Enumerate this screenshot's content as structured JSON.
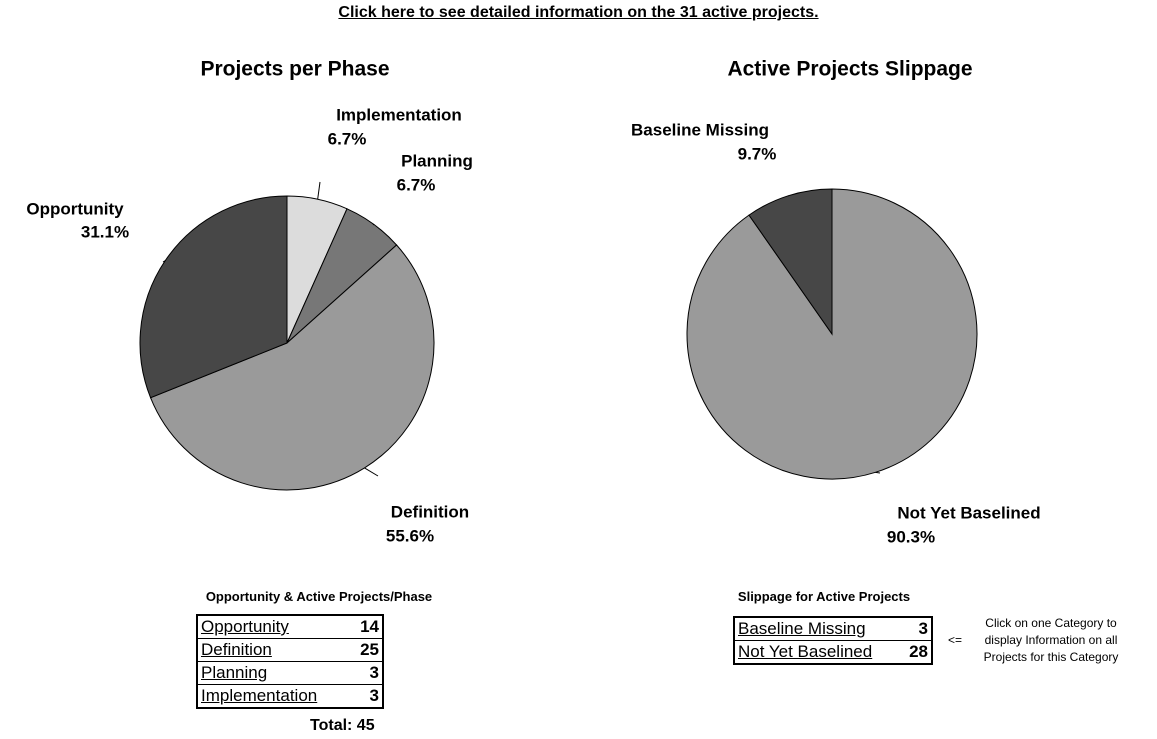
{
  "link": "Click here to see detailed information on the 31 active projects.",
  "chart_data": [
    {
      "type": "pie",
      "title": "Projects per Phase",
      "categories": [
        "Implementation",
        "Planning",
        "Definition",
        "Opportunity"
      ],
      "values": [
        6.7,
        6.7,
        55.6,
        31.1
      ],
      "value_labels": [
        "6.7%",
        "6.7%",
        "55.6%",
        "31.1%"
      ],
      "colors": [
        "#dcdcdc",
        "#777777",
        "#9a9a9a",
        "#474747"
      ]
    },
    {
      "type": "pie",
      "title": "Active Projects Slippage",
      "categories": [
        "Not Yet Baselined",
        "Baseline Missing"
      ],
      "values": [
        90.3,
        9.7
      ],
      "value_labels": [
        "90.3%",
        "9.7%"
      ],
      "colors": [
        "#9a9a9a",
        "#474747"
      ]
    }
  ],
  "tables": [
    {
      "title": "Opportunity & Active Projects/Phase",
      "rows": [
        [
          "Opportunity",
          14
        ],
        [
          "Definition",
          25
        ],
        [
          "Planning",
          3
        ],
        [
          "Implementation",
          3
        ]
      ],
      "total": "Total: 45"
    },
    {
      "title": "Slippage for Active Projects",
      "rows": [
        [
          "Baseline Missing",
          3
        ],
        [
          "Not Yet Baselined",
          28
        ]
      ],
      "arrow": "<=",
      "note": "Click on one Category to display Information on all Projects for this Category"
    }
  ]
}
